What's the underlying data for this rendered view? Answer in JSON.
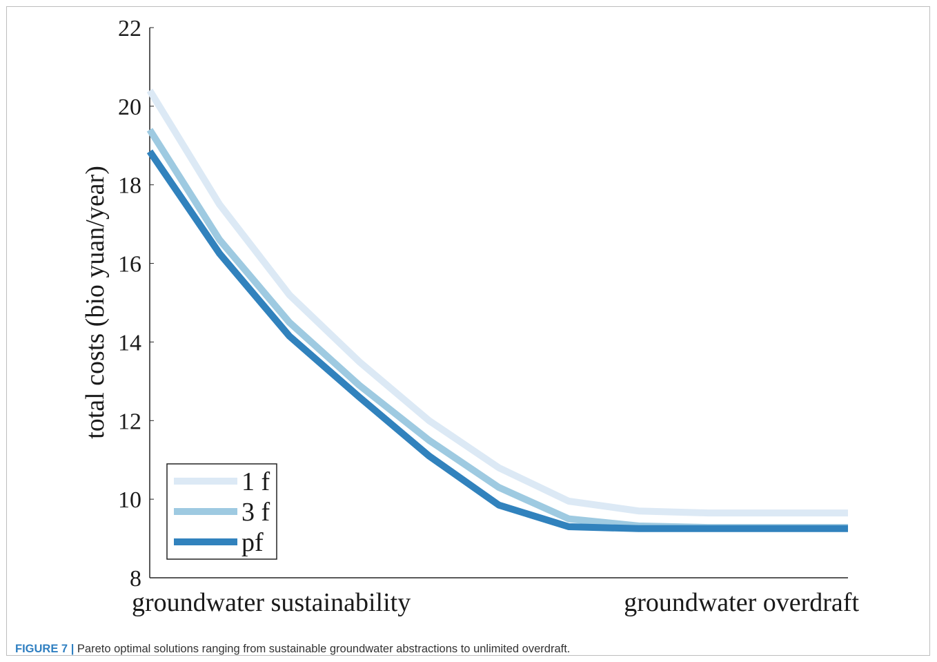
{
  "figure": {
    "label": "FIGURE 7",
    "separator": "|",
    "caption": "Pareto optimal solutions ranging from sustainable groundwater abstractions to unlimited overdraft."
  },
  "chart_data": {
    "type": "line",
    "title": "",
    "ylabel": "total costs (bio yuan/year)",
    "xlabel": "",
    "x_axis_end_labels": [
      "groundwater sustainability",
      "groundwater overdraft"
    ],
    "x": [
      0,
      1,
      2,
      3,
      4,
      5,
      6,
      7,
      8,
      9,
      10
    ],
    "ylim": [
      8,
      22
    ],
    "yticks": [
      8,
      10,
      12,
      14,
      16,
      18,
      20,
      22
    ],
    "grid": false,
    "legend_position": "bottom-left",
    "series": [
      {
        "name": "1 f",
        "color": "#dce9f5",
        "values": [
          20.4,
          17.5,
          15.2,
          13.5,
          12.0,
          10.8,
          9.95,
          9.7,
          9.65,
          9.65,
          9.65
        ]
      },
      {
        "name": "3 f",
        "color": "#9ecae1",
        "values": [
          19.4,
          16.6,
          14.5,
          12.9,
          11.5,
          10.3,
          9.5,
          9.32,
          9.28,
          9.28,
          9.28
        ]
      },
      {
        "name": "pf",
        "color": "#3182bd",
        "values": [
          18.85,
          16.25,
          14.15,
          12.6,
          11.1,
          9.85,
          9.3,
          9.25,
          9.25,
          9.25,
          9.25
        ]
      }
    ]
  }
}
